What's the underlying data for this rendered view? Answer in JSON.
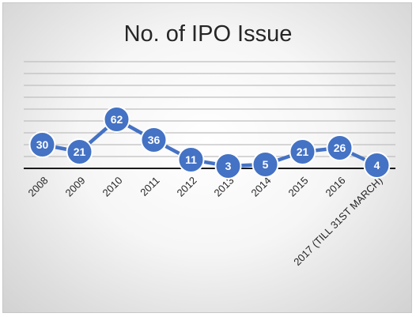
{
  "chart_data": {
    "type": "line",
    "title": "No. of IPO Issue",
    "categories": [
      "2008",
      "2009",
      "2010",
      "2011",
      "2012",
      "2013",
      "2014",
      "2015",
      "2016",
      "2017 (TILL 31ST MARCH)"
    ],
    "series": [
      {
        "values": [
          30,
          21,
          62,
          36,
          11,
          3,
          5,
          21,
          26,
          4
        ]
      }
    ],
    "ylim": [
      0,
      135
    ],
    "grid": true,
    "data_labels": true,
    "legend": "none",
    "colors": {
      "line": "#4472c4",
      "marker": "#4472c4",
      "marker_border": "#ffffff",
      "label_text": "#ffffff",
      "gridline": "#bfbfbf",
      "baseline": "#1a1a1a",
      "title": "#262626"
    }
  }
}
